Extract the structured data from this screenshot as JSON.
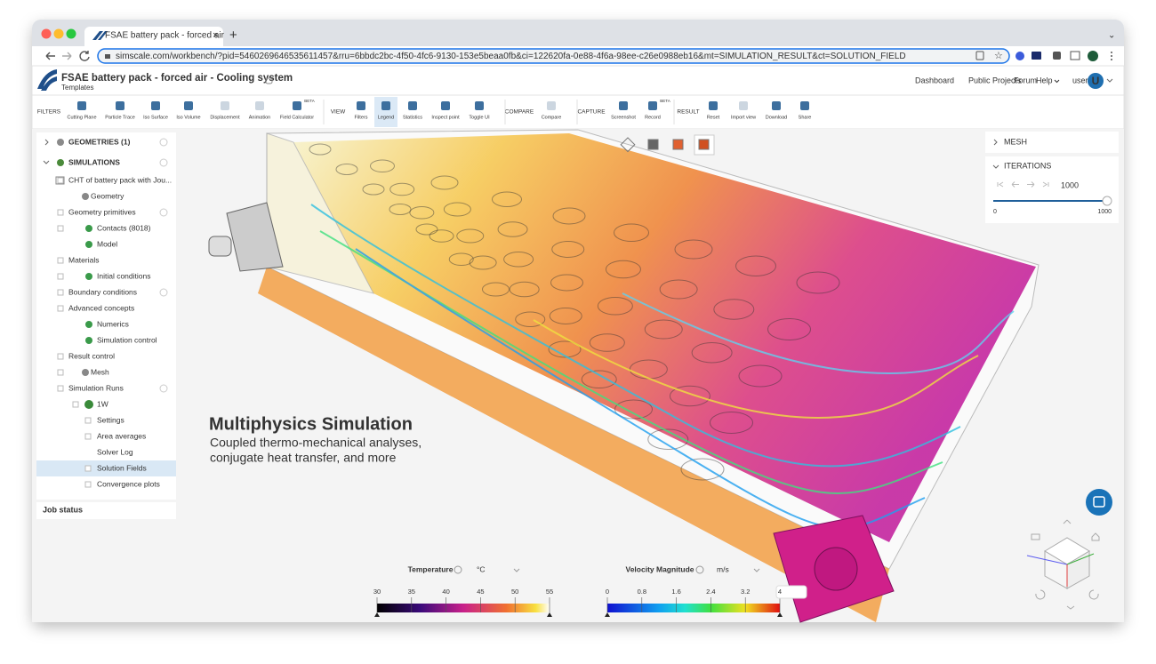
{
  "browser": {
    "tab_title": "FSAE battery pack - forced air",
    "url": "simscale.com/workbench/?pid=5460269646535611457&rru=6bbdc2bc-4f50-4fc6-9130-153e5beaa0fb&ci=122620fa-0e88-4f6a-98ee-c26e0988eb16&mt=SIMULATION_RESULT&ct=SOLUTION_FIELD"
  },
  "header": {
    "title": "FSAE battery pack - forced air - Cooling system",
    "subtitle": "Templates",
    "nav": [
      "Dashboard",
      "Public Projects",
      "Forum",
      "Help"
    ],
    "user": "user",
    "avatar": "U"
  },
  "toolbar": {
    "badge": "BETA",
    "groups": [
      {
        "label": "FILTERS",
        "items": [
          "Cutting Plane",
          "Particle Trace",
          "Iso Surface",
          "Iso Volume",
          "Displacement",
          "Animation",
          "Field Calculator"
        ]
      },
      {
        "label": "VIEW",
        "items": [
          "Filters",
          "Legend",
          "Statistics",
          "Inspect point",
          "Toggle UI"
        ]
      },
      {
        "label": "COMPARE",
        "items": [
          "Compare"
        ]
      },
      {
        "label": "CAPTURE",
        "items": [
          "Screenshot",
          "Record"
        ]
      },
      {
        "label": "RESULT",
        "items": [
          "Reset",
          "Import view",
          "Download",
          "Share"
        ]
      }
    ]
  },
  "tree": {
    "items": [
      "GEOMETRIES (1)",
      "SIMULATIONS",
      "CHT of battery pack with Jou...",
      "Geometry",
      "Geometry primitives",
      "Contacts (8018)",
      "Model",
      "Materials",
      "Initial conditions",
      "Boundary conditions",
      "Advanced concepts",
      "Numerics",
      "Simulation control",
      "Result control",
      "Mesh",
      "Simulation Runs",
      "1W",
      "Settings",
      "Area averages",
      "Solver Log",
      "Solution Fields",
      "Convergence plots"
    ],
    "job_status": "Job status"
  },
  "panel": {
    "mesh": "MESH",
    "iterations": "ITERATIONS",
    "value": 1000,
    "slider_min": 0,
    "slider_max": 1000
  },
  "overlay": {
    "headline": "Multiphysics Simulation",
    "lines": [
      "Coupled thermo-mechanical analyses,",
      "conjugate heat transfer, and more"
    ]
  },
  "legends": [
    {
      "title": "Temperature",
      "unit": "°C",
      "ticks": [
        30,
        35,
        40,
        45,
        50,
        55
      ]
    },
    {
      "title": "Velocity Magnitude",
      "unit": "m/s",
      "ticks": [
        0,
        0.8,
        1.6,
        2.4,
        3.2,
        4
      ]
    }
  ]
}
